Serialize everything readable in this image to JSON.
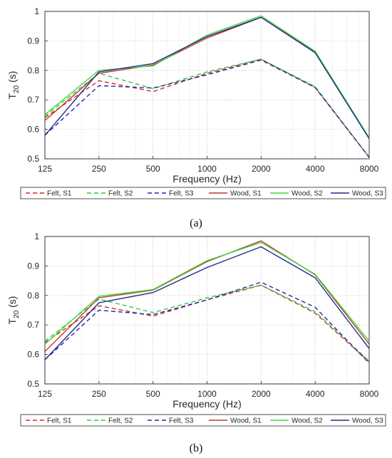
{
  "chart_data": [
    {
      "type": "line",
      "caption": "(a)",
      "xlabel": "Frequency (Hz)",
      "ylabel": "T",
      "ylabel_sub": "20",
      "ylabel_unit": " (s)",
      "x": [
        125,
        250,
        500,
        1000,
        2000,
        4000,
        8000
      ],
      "x_tick_labels": [
        "125",
        "250",
        "500",
        "1000",
        "2000",
        "4000",
        "8000"
      ],
      "x_scale": "log",
      "ylim": [
        0.5,
        1
      ],
      "y_ticks": [
        "0.5",
        "0.6",
        "0.7",
        "0.8",
        "0.9",
        "1"
      ],
      "grid": "dotted",
      "legend_position": "bottom",
      "series": [
        {
          "name": "Felt, S1",
          "color": "#d62728",
          "style": "dashed",
          "values": [
            0.64,
            0.765,
            0.728,
            0.79,
            0.838,
            0.742,
            0.505
          ]
        },
        {
          "name": "Felt, S2",
          "color": "#2ecc40",
          "style": "dashed",
          "values": [
            0.645,
            0.79,
            0.738,
            0.795,
            0.838,
            0.745,
            0.505
          ]
        },
        {
          "name": "Felt, S3",
          "color": "#1f2aa8",
          "style": "dashed",
          "values": [
            0.58,
            0.748,
            0.74,
            0.785,
            0.835,
            0.742,
            0.505
          ]
        },
        {
          "name": "Wood, S1",
          "color": "#c0392b",
          "style": "solid",
          "values": [
            0.63,
            0.79,
            0.818,
            0.91,
            0.98,
            0.862,
            0.57
          ]
        },
        {
          "name": "Wood, S2",
          "color": "#3ddc3d",
          "style": "solid",
          "values": [
            0.65,
            0.8,
            0.815,
            0.92,
            0.985,
            0.865,
            0.572
          ]
        },
        {
          "name": "Wood, S3",
          "color": "#1f2a8a",
          "style": "solid",
          "values": [
            0.58,
            0.795,
            0.823,
            0.915,
            0.98,
            0.86,
            0.568
          ]
        }
      ]
    },
    {
      "type": "line",
      "caption": "(b)",
      "xlabel": "Frequency (Hz)",
      "ylabel": "T",
      "ylabel_sub": "20",
      "ylabel_unit": " (s)",
      "x": [
        125,
        250,
        500,
        1000,
        2000,
        4000,
        8000
      ],
      "x_tick_labels": [
        "125",
        "250",
        "500",
        "1000",
        "2000",
        "4000",
        "8000"
      ],
      "x_scale": "log",
      "ylim": [
        0.5,
        1
      ],
      "y_ticks": [
        "0.5",
        "0.6",
        "0.7",
        "0.8",
        "0.9",
        "1"
      ],
      "grid": "dotted",
      "legend_position": "bottom",
      "series": [
        {
          "name": "Felt, S1",
          "color": "#d62728",
          "style": "dashed",
          "values": [
            0.64,
            0.765,
            0.73,
            0.785,
            0.835,
            0.74,
            0.575
          ]
        },
        {
          "name": "Felt, S2",
          "color": "#2ecc40",
          "style": "dashed",
          "values": [
            0.645,
            0.788,
            0.742,
            0.792,
            0.835,
            0.745,
            0.578
          ]
        },
        {
          "name": "Felt, S3",
          "color": "#1f2aa8",
          "style": "dashed",
          "values": [
            0.582,
            0.75,
            0.735,
            0.785,
            0.845,
            0.76,
            0.57
          ]
        },
        {
          "name": "Wood, S1",
          "color": "#c0392b",
          "style": "solid",
          "values": [
            0.61,
            0.792,
            0.818,
            0.915,
            0.985,
            0.87,
            0.635
          ]
        },
        {
          "name": "Wood, S2",
          "color": "#3ddc3d",
          "style": "solid",
          "values": [
            0.635,
            0.797,
            0.82,
            0.918,
            0.98,
            0.872,
            0.645
          ]
        },
        {
          "name": "Wood, S3",
          "color": "#1f2a8a",
          "style": "solid",
          "values": [
            0.582,
            0.775,
            0.81,
            0.895,
            0.965,
            0.86,
            0.62
          ]
        }
      ]
    }
  ]
}
